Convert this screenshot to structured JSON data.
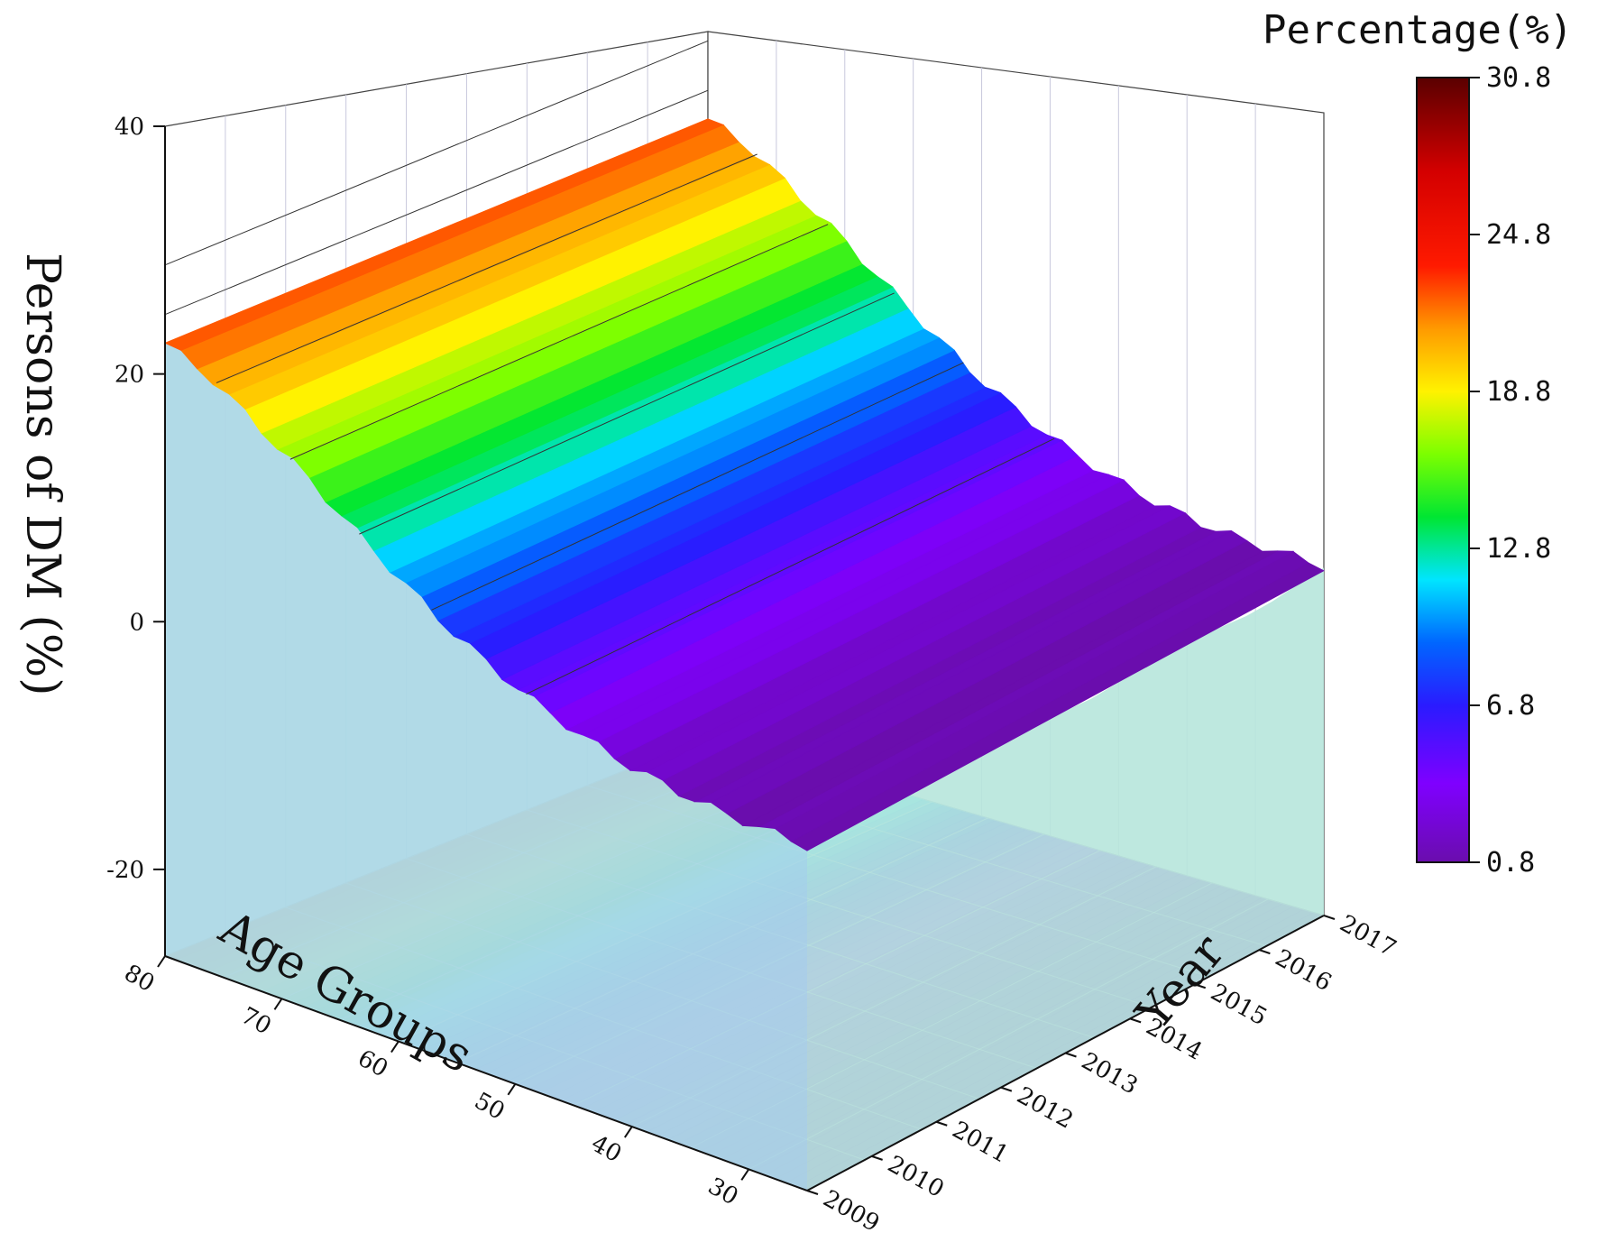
{
  "chart_data": {
    "type": "surface3d",
    "title": "",
    "zlabel": "Persons of DM (%)",
    "xlabel": "Age Groups",
    "ylabel": "Year",
    "x_ticks": [
      "80",
      "70",
      "60",
      "50",
      "40",
      "30"
    ],
    "y_ticks": [
      "2009",
      "2010",
      "2011",
      "2012",
      "2013",
      "2014",
      "2015",
      "2016",
      "2017"
    ],
    "z_ticks": [
      "40",
      "20",
      "0",
      "-20"
    ],
    "zlim": [
      -27,
      40
    ],
    "colorbar": {
      "title": "Percentage(%)",
      "ticks": [
        "30.8",
        "24.8",
        "18.8",
        "12.8",
        "6.8",
        "0.8"
      ],
      "range": [
        0.8,
        30.8
      ]
    },
    "age_values": [
      80,
      75,
      70,
      65,
      60,
      55,
      50,
      45,
      40,
      35,
      30,
      25
    ],
    "surface_profile": [
      {
        "age": 82,
        "value": 22.5
      },
      {
        "age": 80,
        "value": 22.5
      },
      {
        "age": 76,
        "value": 21.0
      },
      {
        "age": 72,
        "value": 18.5
      },
      {
        "age": 68,
        "value": 16.0
      },
      {
        "age": 64,
        "value": 13.2
      },
      {
        "age": 60,
        "value": 10.5
      },
      {
        "age": 56,
        "value": 8.0
      },
      {
        "age": 52,
        "value": 6.0
      },
      {
        "age": 48,
        "value": 4.3
      },
      {
        "age": 44,
        "value": 3.0
      },
      {
        "age": 40,
        "value": 2.0
      },
      {
        "age": 36,
        "value": 1.4
      },
      {
        "age": 32,
        "value": 1.0
      },
      {
        "age": 28,
        "value": 0.9
      },
      {
        "age": 25,
        "value": 0.8
      }
    ],
    "contour_levels": [
      4.8,
      8.8,
      12.8,
      16.8,
      20.8,
      24.8,
      28.8
    ]
  }
}
